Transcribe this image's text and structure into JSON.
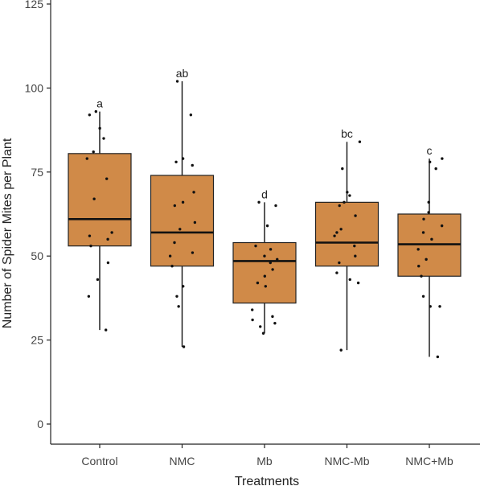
{
  "chart_data": {
    "type": "box",
    "xlabel": "Treatments",
    "ylabel": "Number of Spider Mites per Plant",
    "ylim": [
      0,
      125
    ],
    "yticks": [
      0,
      25,
      50,
      75,
      100,
      125
    ],
    "grid": false,
    "box_color": "#d08a48",
    "categories": [
      "Control",
      "NMC",
      "Mb",
      "NMC-Mb",
      "NMC+Mb"
    ],
    "boxes": [
      {
        "category": "Control",
        "letter": "a",
        "min": 28,
        "q1": 53,
        "median": 61,
        "q3": 80.5,
        "max": 93,
        "points": [
          28,
          38,
          43,
          48,
          53,
          55,
          56,
          57,
          67,
          73,
          79,
          81,
          85,
          88,
          92,
          93
        ]
      },
      {
        "category": "NMC",
        "letter": "ab",
        "min": 23,
        "q1": 47,
        "median": 57,
        "q3": 74,
        "max": 102,
        "points": [
          23,
          35,
          38,
          41,
          47,
          50,
          51,
          54,
          58,
          60,
          65,
          66,
          69,
          77,
          78,
          79,
          92,
          102
        ]
      },
      {
        "category": "Mb",
        "letter": "d",
        "min": 27,
        "q1": 36,
        "median": 48.5,
        "q3": 54,
        "max": 66,
        "points": [
          27,
          29,
          30,
          31,
          32,
          34,
          41,
          42,
          44,
          46,
          48,
          49,
          50,
          52,
          53,
          59,
          65,
          66
        ]
      },
      {
        "category": "NMC-Mb",
        "letter": "bc",
        "min": 22,
        "q1": 47,
        "median": 54,
        "q3": 66,
        "max": 84,
        "points": [
          22,
          42,
          43,
          45,
          48,
          50,
          53,
          56,
          57,
          58,
          62,
          65,
          66,
          68,
          69,
          76,
          84
        ]
      },
      {
        "category": "NMC+Mb",
        "letter": "c",
        "min": 20,
        "q1": 44,
        "median": 53.5,
        "q3": 62.5,
        "max": 79,
        "points": [
          20,
          35,
          35,
          38,
          44,
          47,
          49,
          52,
          55,
          57,
          59,
          61,
          63,
          66,
          76,
          78,
          79
        ]
      }
    ]
  }
}
